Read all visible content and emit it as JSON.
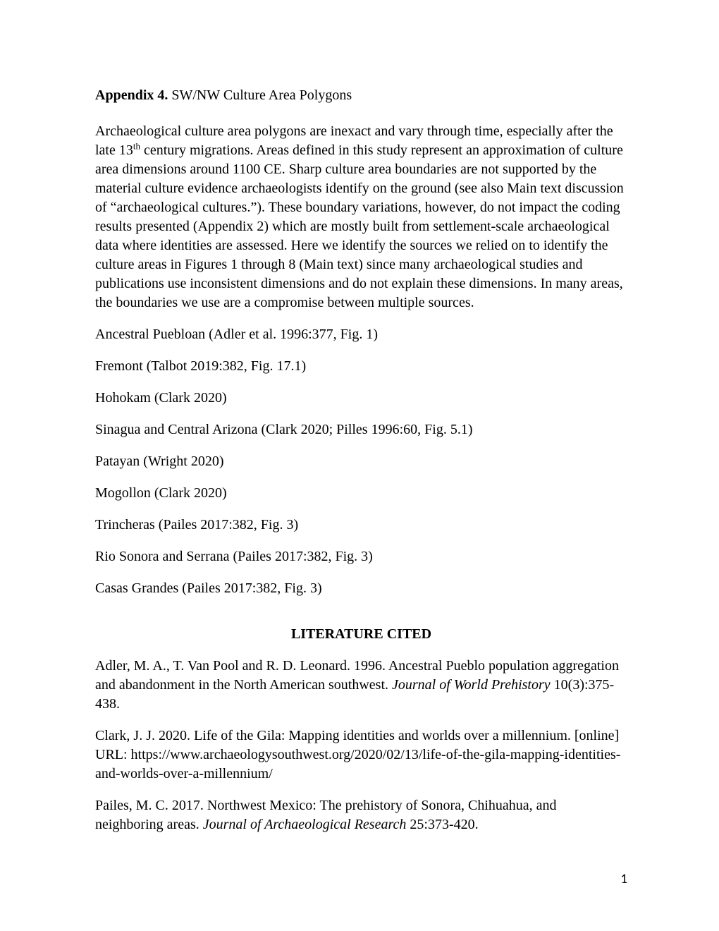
{
  "title": {
    "bold": "Appendix 4.",
    "rest": " SW/NW Culture Area Polygons"
  },
  "intro": {
    "part1": "Archaeological culture area polygons are inexact and vary through time, especially after the late 13",
    "sup": "th",
    "part2": " century migrations. Areas defined in this study represent an approximation of culture area dimensions around 1100 CE. Sharp culture area boundaries are not supported by the material culture evidence archaeologists identify on the ground (see also Main text discussion of “archaeological cultures.”). These boundary variations, however, do not impact the coding results presented (Appendix 2) which are mostly built from settlement-scale archaeological data where identities are assessed. Here we identify the sources we relied on to identify the culture areas in Figures 1 through 8 (Main text) since many archaeological studies and publications use inconsistent dimensions and do not explain these dimensions. In many areas, the boundaries we use are a compromise between multiple sources."
  },
  "cultures": [
    "Ancestral Puebloan (Adler et al. 1996:377, Fig. 1)",
    "Fremont (Talbot 2019:382, Fig. 17.1)",
    "Hohokam (Clark 2020)",
    "Sinagua and Central Arizona (Clark 2020; Pilles 1996:60, Fig. 5.1)",
    "Patayan (Wright 2020)",
    "Mogollon (Clark 2020)",
    "Trincheras (Pailes 2017:382, Fig. 3)",
    "Rio Sonora and Serrana (Pailes 2017:382, Fig. 3)",
    "Casas Grandes (Pailes 2017:382, Fig. 3)"
  ],
  "litHeading": "LITERATURE CITED",
  "refs": [
    {
      "pre": "Adler, M. A., T. Van Pool and R. D. Leonard. 1996. Ancestral Pueblo population aggregation and abandonment in the North American southwest. ",
      "italic": "Journal of World Prehistory",
      "post": " 10(3):375-438."
    },
    {
      "pre": "Clark, J. J. 2020. Life of the Gila: Mapping identities and worlds over a millennium. [online] URL: https://www.archaeologysouthwest.org/2020/02/13/life-of-the-gila-mapping-identities-and-worlds-over-a-millennium/",
      "italic": "",
      "post": ""
    },
    {
      "pre": "Pailes, M. C. 2017. Northwest Mexico: The prehistory of Sonora, Chihuahua, and neighboring areas. ",
      "italic": "Journal of Archaeological Research",
      "post": " 25:373-420."
    }
  ],
  "pageNumber": "1"
}
